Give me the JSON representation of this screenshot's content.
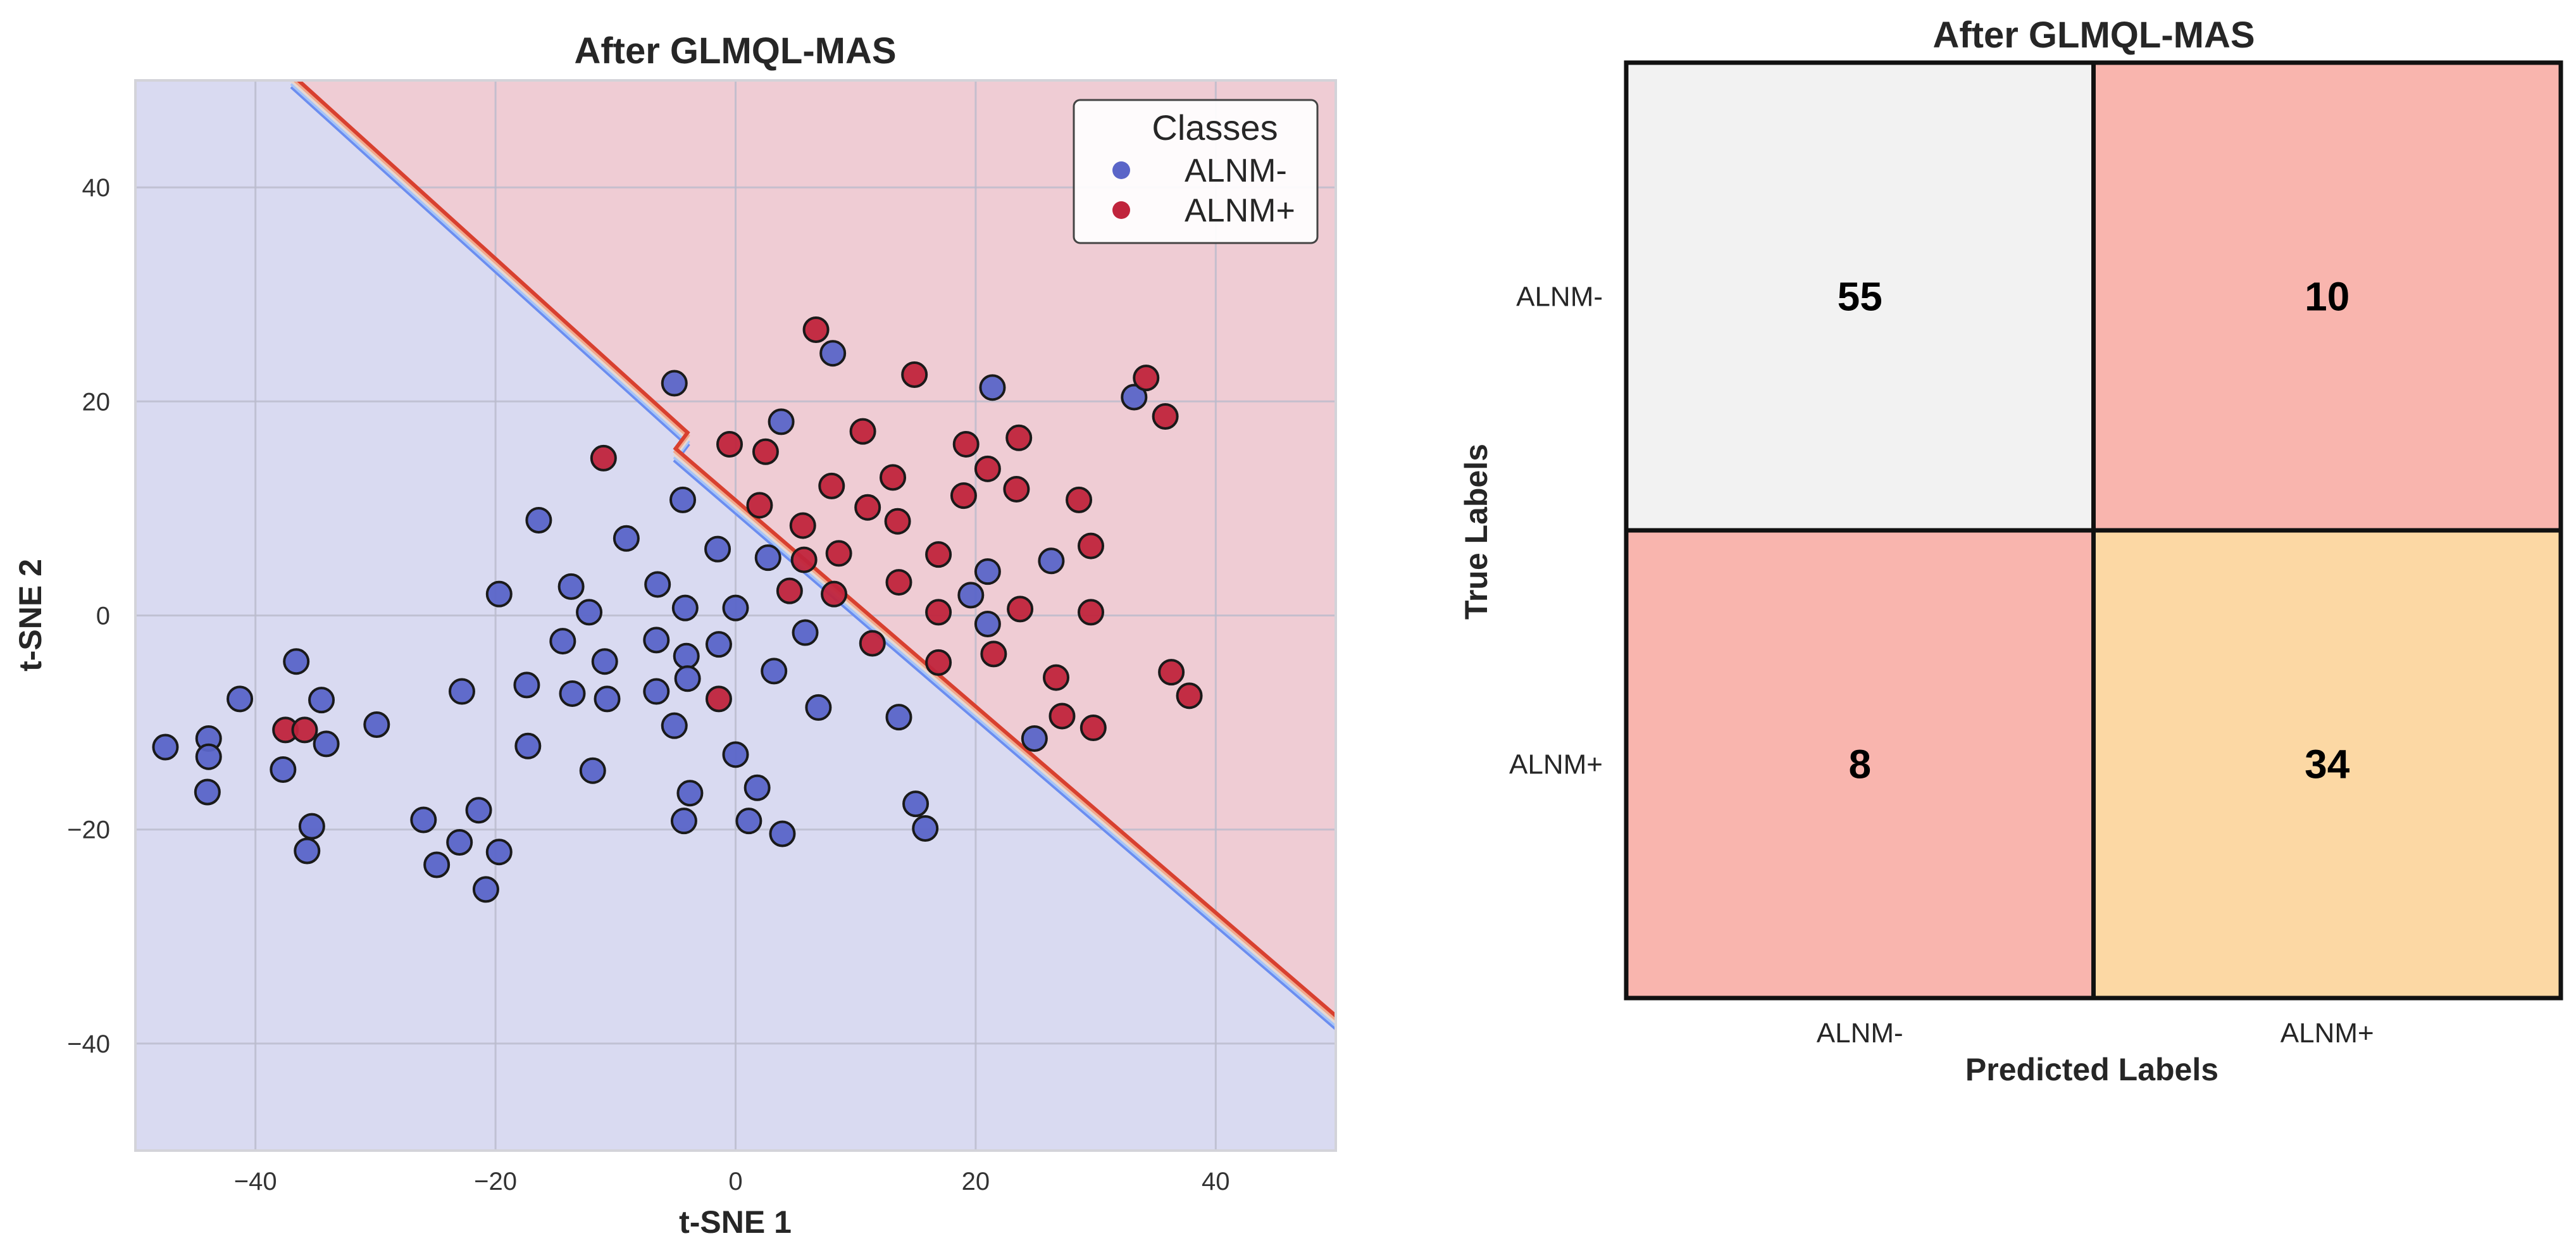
{
  "chart_data": [
    {
      "type": "scatter",
      "title": "After GLMQL-MAS",
      "xlabel": "t-SNE 1",
      "ylabel": "t-SNE 2",
      "xlim": [
        -50,
        50
      ],
      "ylim": [
        -50,
        50
      ],
      "xticks": [
        -40,
        -20,
        0,
        20,
        40
      ],
      "yticks": [
        -40,
        -20,
        0,
        20,
        40
      ],
      "xtick_labels": [
        "−40",
        "−20",
        "0",
        "20",
        "40"
      ],
      "ytick_labels": [
        "−40",
        "−20",
        "0",
        "20",
        "40"
      ],
      "grid": true,
      "legend": {
        "title": "Classes",
        "position": "top-right",
        "entries": [
          {
            "label": "ALNM-",
            "color": "#5a65c8"
          },
          {
            "label": "ALNM+",
            "color": "#c0243c"
          }
        ]
      },
      "decision_boundary": {
        "upper_segment": [
          [
            -37,
            50
          ],
          [
            -4,
            16.5
          ]
        ],
        "lower_segment": [
          [
            -5,
            15
          ],
          [
            50,
            -38
          ]
        ],
        "region_below_color": "#d9daf1",
        "region_above_color": "#efccd4"
      },
      "series": [
        {
          "name": "ALNM-",
          "color": "#5a65c8",
          "points": [
            [
              -47.5,
              -12.3
            ],
            [
              -43.9,
              -11.5
            ],
            [
              -43.9,
              -13.2
            ],
            [
              -44.0,
              -16.5
            ],
            [
              -41.3,
              -7.8
            ],
            [
              -36.6,
              -4.3
            ],
            [
              -37.7,
              -14.4
            ],
            [
              -34.5,
              -7.9
            ],
            [
              -34.1,
              -12.0
            ],
            [
              -35.3,
              -19.7
            ],
            [
              -35.7,
              -22.0
            ],
            [
              -29.9,
              -10.2
            ],
            [
              -26.0,
              -19.1
            ],
            [
              -24.9,
              -23.3
            ],
            [
              -23.0,
              -21.2
            ],
            [
              -22.8,
              -7.1
            ],
            [
              -21.4,
              -18.2
            ],
            [
              -20.8,
              -25.6
            ],
            [
              -19.7,
              -22.1
            ],
            [
              -19.7,
              2.0
            ],
            [
              -17.4,
              -6.5
            ],
            [
              -17.3,
              -12.2
            ],
            [
              -16.4,
              8.9
            ],
            [
              -14.4,
              -2.4
            ],
            [
              -13.7,
              2.7
            ],
            [
              -13.6,
              -7.3
            ],
            [
              -12.2,
              0.3
            ],
            [
              -11.9,
              -14.5
            ],
            [
              -10.9,
              -4.3
            ],
            [
              -10.7,
              -7.8
            ],
            [
              -9.1,
              7.2
            ],
            [
              -6.6,
              -2.3
            ],
            [
              -6.6,
              -7.1
            ],
            [
              -6.5,
              2.9
            ],
            [
              -5.1,
              -10.3
            ],
            [
              -5.1,
              21.7
            ],
            [
              -4.4,
              10.8
            ],
            [
              -4.2,
              0.7
            ],
            [
              -4.1,
              -3.8
            ],
            [
              -4.0,
              -5.9
            ],
            [
              -3.8,
              -16.6
            ],
            [
              -4.3,
              -19.2
            ],
            [
              -1.4,
              -2.7
            ],
            [
              -1.5,
              6.2
            ],
            [
              0.0,
              0.7
            ],
            [
              0.0,
              -13.0
            ],
            [
              1.1,
              -19.2
            ],
            [
              1.8,
              -16.1
            ],
            [
              2.7,
              5.4
            ],
            [
              3.2,
              -5.2
            ],
            [
              3.8,
              18.1
            ],
            [
              3.9,
              -20.4
            ],
            [
              5.8,
              -1.6
            ],
            [
              6.9,
              -8.6
            ],
            [
              8.1,
              24.5
            ],
            [
              13.6,
              -9.5
            ],
            [
              15.0,
              -17.6
            ],
            [
              15.8,
              -19.9
            ],
            [
              19.6,
              1.9
            ],
            [
              21.0,
              4.1
            ],
            [
              21.0,
              -0.8
            ],
            [
              21.4,
              21.3
            ],
            [
              26.3,
              5.1
            ],
            [
              24.9,
              -11.5
            ],
            [
              33.2,
              20.4
            ]
          ]
        },
        {
          "name": "ALNM+",
          "color": "#c0243c",
          "points": [
            [
              -37.5,
              -10.7
            ],
            [
              -35.9,
              -10.7
            ],
            [
              -11.0,
              14.7
            ],
            [
              -1.4,
              -7.8
            ],
            [
              -0.5,
              16.0
            ],
            [
              2.0,
              10.3
            ],
            [
              2.5,
              15.3
            ],
            [
              4.5,
              2.3
            ],
            [
              5.6,
              8.4
            ],
            [
              5.7,
              5.2
            ],
            [
              6.7,
              26.7
            ],
            [
              8.0,
              12.1
            ],
            [
              8.2,
              2.0
            ],
            [
              8.6,
              5.8
            ],
            [
              10.6,
              17.2
            ],
            [
              11.0,
              10.1
            ],
            [
              11.4,
              -2.6
            ],
            [
              13.1,
              12.9
            ],
            [
              13.5,
              8.8
            ],
            [
              13.6,
              3.1
            ],
            [
              14.9,
              22.5
            ],
            [
              16.9,
              5.7
            ],
            [
              16.9,
              0.3
            ],
            [
              16.9,
              -4.4
            ],
            [
              19.0,
              11.2
            ],
            [
              19.2,
              16.0
            ],
            [
              21.0,
              13.7
            ],
            [
              21.5,
              -3.6
            ],
            [
              23.4,
              11.8
            ],
            [
              23.6,
              16.6
            ],
            [
              23.7,
              0.6
            ],
            [
              26.7,
              -5.8
            ],
            [
              27.2,
              -9.4
            ],
            [
              28.6,
              10.8
            ],
            [
              29.6,
              6.5
            ],
            [
              29.6,
              0.3
            ],
            [
              29.8,
              -10.5
            ],
            [
              34.2,
              22.2
            ],
            [
              35.8,
              18.6
            ],
            [
              36.3,
              -5.3
            ],
            [
              37.8,
              -7.5
            ]
          ]
        }
      ]
    },
    {
      "type": "heatmap",
      "title": "After GLMQL-MAS",
      "xlabel": "Predicted Labels",
      "ylabel": "True Labels",
      "row_labels": [
        "ALNM-",
        "ALNM+"
      ],
      "col_labels": [
        "ALNM-",
        "ALNM+"
      ],
      "values": [
        [
          55,
          10
        ],
        [
          8,
          34
        ]
      ],
      "display": [
        [
          "55",
          "10"
        ],
        [
          "8",
          "34"
        ]
      ],
      "cell_colors": [
        [
          "#f2f2f2",
          "#f9b5ae"
        ],
        [
          "#f9b5ae",
          "#fcd8a4"
        ]
      ]
    }
  ]
}
